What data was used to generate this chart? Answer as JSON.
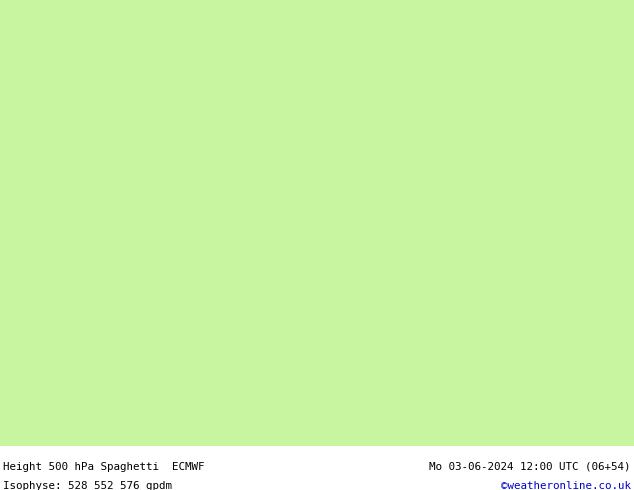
{
  "title_left": "Height 500 hPa Spaghetti  ECMWF",
  "title_right": "Mo 03-06-2024 12:00 UTC (06+54)",
  "subtitle_left": "Isophyse: 528 552 576 gpdm",
  "subtitle_right": "©weatheronline.co.uk",
  "subtitle_right_color": "#0000cc",
  "background_color": "#ffffff",
  "land_color": "#c8f5a0",
  "sea_color": "#d8d8d8",
  "border_color": "#888888",
  "text_color": "#000000",
  "figsize": [
    6.34,
    4.9
  ],
  "dpi": 100,
  "map_extent": [
    -16,
    25,
    43,
    65
  ],
  "spaghetti_colors": [
    "#444444",
    "#444444",
    "#444444",
    "#444444",
    "#444444",
    "#444444",
    "#444444",
    "#444444",
    "#444444",
    "#444444",
    "#444444",
    "#444444",
    "#444444",
    "#444444",
    "#444444",
    "#444444",
    "#444444",
    "#444444",
    "#444444",
    "#444444",
    "#444444",
    "#444444",
    "#444444",
    "#444444",
    "#444444",
    "#ff00ff",
    "#ff00ff",
    "#ff00ff",
    "#ff0000",
    "#ff0000",
    "#ff0000",
    "#00aaff",
    "#00aaff",
    "#00aaff",
    "#0000dd",
    "#0000dd",
    "#ff8800",
    "#ff8800",
    "#dddd00",
    "#dddd00",
    "#44cc44",
    "#44cc44",
    "#00cccc",
    "#00cccc",
    "#8800cc",
    "#8800cc"
  ],
  "line_seeds": [
    [
      0.1,
      0.05,
      0.3
    ],
    [
      0.2,
      0.15,
      0.4
    ],
    [
      0.3,
      0.08,
      0.35
    ],
    [
      0.4,
      0.12,
      0.45
    ],
    [
      0.5,
      0.18,
      0.38
    ],
    [
      0.6,
      0.22,
      0.42
    ],
    [
      0.7,
      0.07,
      0.33
    ],
    [
      0.8,
      0.25,
      0.48
    ],
    [
      0.9,
      0.03,
      0.28
    ],
    [
      0.15,
      0.2,
      0.5
    ],
    [
      0.25,
      0.1,
      0.36
    ],
    [
      0.35,
      0.16,
      0.44
    ],
    [
      0.45,
      0.06,
      0.32
    ],
    [
      0.55,
      0.23,
      0.47
    ],
    [
      0.65,
      0.11,
      0.39
    ],
    [
      0.75,
      0.19,
      0.43
    ],
    [
      0.85,
      0.04,
      0.29
    ],
    [
      0.95,
      0.21,
      0.46
    ],
    [
      0.05,
      0.14,
      0.41
    ],
    [
      0.12,
      0.09,
      0.34
    ],
    [
      0.22,
      0.17,
      0.49
    ],
    [
      0.32,
      0.13,
      0.37
    ],
    [
      0.42,
      0.24,
      0.51
    ],
    [
      0.52,
      0.02,
      0.27
    ],
    [
      0.62,
      0.26,
      0.53
    ],
    [
      0.18,
      0.28,
      0.55
    ],
    [
      0.38,
      0.3,
      0.57
    ],
    [
      0.58,
      0.27,
      0.54
    ],
    [
      0.28,
      0.32,
      0.58
    ],
    [
      0.48,
      0.29,
      0.56
    ],
    [
      0.68,
      0.31,
      0.59
    ],
    [
      0.08,
      0.33,
      0.6
    ],
    [
      0.78,
      0.35,
      0.62
    ],
    [
      0.88,
      0.34,
      0.61
    ],
    [
      0.13,
      0.37,
      0.63
    ],
    [
      0.73,
      0.36,
      0.64
    ],
    [
      0.23,
      0.39,
      0.65
    ],
    [
      0.83,
      0.38,
      0.66
    ],
    [
      0.33,
      0.41,
      0.67
    ],
    [
      0.93,
      0.4,
      0.68
    ],
    [
      0.43,
      0.43,
      0.69
    ],
    [
      0.53,
      0.42,
      0.7
    ],
    [
      0.63,
      0.45,
      0.71
    ],
    [
      0.03,
      0.44,
      0.72
    ],
    [
      0.71,
      0.47,
      0.73
    ],
    [
      0.81,
      0.46,
      0.74
    ]
  ]
}
